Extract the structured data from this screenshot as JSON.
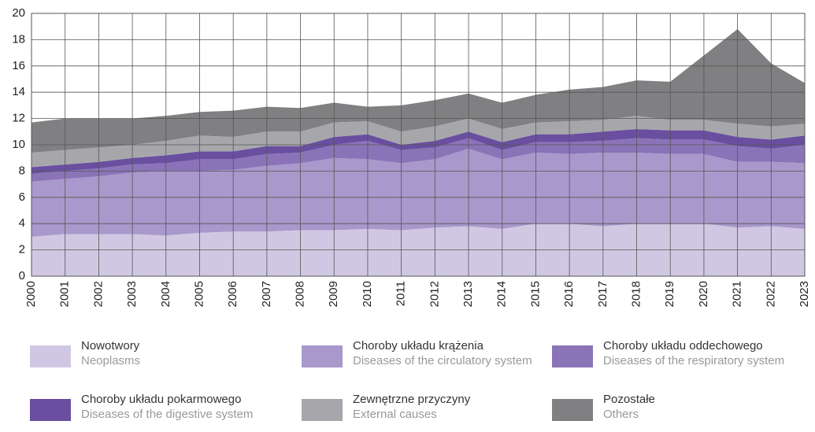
{
  "chart_data": {
    "type": "stacked_area",
    "x": [
      2000,
      2001,
      2002,
      2003,
      2004,
      2005,
      2006,
      2007,
      2008,
      2009,
      2010,
      2011,
      2012,
      2013,
      2014,
      2015,
      2016,
      2017,
      2018,
      2019,
      2020,
      2021,
      2022,
      2023
    ],
    "xlim": [
      2000,
      2023
    ],
    "xticks": [
      2000,
      2001,
      2002,
      2003,
      2004,
      2005,
      2006,
      2007,
      2008,
      2009,
      2010,
      2011,
      2012,
      2013,
      2014,
      2015,
      2016,
      2017,
      2018,
      2019,
      2020,
      2021,
      2022,
      2023
    ],
    "ylim": [
      0,
      20
    ],
    "yticks": [
      0,
      2,
      4,
      6,
      8,
      10,
      12,
      14,
      16,
      18,
      20
    ],
    "grid": true,
    "series": [
      {
        "name": "Nowotwory",
        "name_en": "Neoplasms",
        "color": "#d0c8e3",
        "values": [
          3.0,
          3.2,
          3.2,
          3.2,
          3.1,
          3.3,
          3.4,
          3.4,
          3.5,
          3.5,
          3.6,
          3.5,
          3.7,
          3.8,
          3.6,
          4.0,
          4.0,
          3.8,
          4.0,
          4.0,
          4.0,
          3.7,
          3.8,
          3.6
        ]
      },
      {
        "name": "Choroby układu krążenia",
        "name_en": "Diseases of the circulatory system",
        "color": "#a898cb",
        "values": [
          4.2,
          4.2,
          4.4,
          4.7,
          4.9,
          4.7,
          4.7,
          5.0,
          5.1,
          5.5,
          5.3,
          5.1,
          5.2,
          5.9,
          5.3,
          5.4,
          5.3,
          5.6,
          5.4,
          5.3,
          5.3,
          5.0,
          4.9,
          5.0
        ]
      },
      {
        "name": "Choroby układu oddechowego",
        "name_en": "Diseases of the respiratory system",
        "color": "#8b73b8",
        "values": [
          0.6,
          0.6,
          0.6,
          0.6,
          0.6,
          0.9,
          0.8,
          0.9,
          0.8,
          1.0,
          1.4,
          1.0,
          0.9,
          0.8,
          0.7,
          0.8,
          0.9,
          0.9,
          1.1,
          1.1,
          1.1,
          1.2,
          1.0,
          1.4
        ]
      },
      {
        "name": "Choroby układu pokarmowego",
        "name_en": "Diseases of the digestive system",
        "color": "#6a4fa0",
        "values": [
          0.5,
          0.5,
          0.5,
          0.5,
          0.6,
          0.6,
          0.6,
          0.6,
          0.5,
          0.6,
          0.5,
          0.4,
          0.5,
          0.5,
          0.6,
          0.6,
          0.6,
          0.7,
          0.7,
          0.7,
          0.7,
          0.7,
          0.7,
          0.7
        ]
      },
      {
        "name": "Zewnętrzne przyczyny",
        "name_en": "External causes",
        "color": "#a7a7ab",
        "values": [
          1.1,
          1.1,
          1.1,
          1.0,
          1.1,
          1.2,
          1.1,
          1.1,
          1.1,
          1.1,
          1.0,
          1.0,
          1.1,
          1.0,
          1.0,
          0.9,
          1.0,
          0.9,
          1.0,
          0.8,
          0.8,
          1.0,
          1.0,
          0.9
        ]
      },
      {
        "name": "Pozostałe",
        "name_en": "Others",
        "color": "#808083",
        "values": [
          2.3,
          2.4,
          2.2,
          2.0,
          1.9,
          1.8,
          2.0,
          1.9,
          1.8,
          1.5,
          1.1,
          2.0,
          2.0,
          1.9,
          2.0,
          2.1,
          2.4,
          2.5,
          2.7,
          2.9,
          4.9,
          7.2,
          4.8,
          3.1
        ]
      }
    ]
  }
}
